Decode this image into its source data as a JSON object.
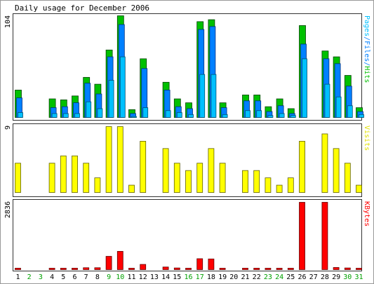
{
  "chart_data": {
    "type": "bar",
    "title": "Daily usage for December 2006",
    "days": [
      "1",
      "2",
      "3",
      "4",
      "5",
      "6",
      "7",
      "8",
      "9",
      "10",
      "11",
      "12",
      "13",
      "14",
      "15",
      "16",
      "17",
      "18",
      "19",
      "20",
      "21",
      "22",
      "23",
      "24",
      "25",
      "26",
      "27",
      "28",
      "29",
      "30",
      "31"
    ],
    "weekend_days": [
      2,
      3,
      9,
      10,
      16,
      17,
      23,
      24,
      30,
      31
    ],
    "panels": [
      {
        "id": "hits-panel",
        "scale_label": "104",
        "max": 104,
        "legend": [
          {
            "text": "Pages",
            "color": "#00C0FF"
          },
          {
            "text": "/",
            "color": "#0080FF"
          },
          {
            "text": "Files",
            "color": "#0080FF"
          },
          {
            "text": "/",
            "color": "#0080FF"
          },
          {
            "text": "Hits",
            "color": "#00C000"
          }
        ],
        "series": [
          {
            "name": "Hits",
            "color": "#00C000",
            "values": [
              28,
              0,
              0,
              19,
              18,
              22,
              41,
              34,
              69,
              104,
              8,
              60,
              0,
              36,
              19,
              15,
              98,
              100,
              15,
              0,
              23,
              23,
              11,
              19,
              9,
              94,
              0,
              68,
              62,
              43,
              10
            ]
          },
          {
            "name": "Files",
            "color": "#0080FF",
            "values": [
              20,
              0,
              0,
              10,
              11,
              15,
              35,
              24,
              62,
              95,
              4,
              50,
              0,
              28,
              11,
              9,
              90,
              93,
              10,
              0,
              17,
              17,
              6,
              12,
              4,
              75,
              0,
              60,
              55,
              32,
              6
            ]
          },
          {
            "name": "Pages",
            "color": "#00C0FF",
            "values": [
              5,
              0,
              0,
              4,
              4,
              4,
              16,
              9,
              38,
              62,
              1,
              10,
              0,
              7,
              5,
              3,
              44,
              44,
              3,
              0,
              7,
              7,
              2,
              4,
              2,
              60,
              0,
              34,
              21,
              12,
              3
            ]
          }
        ]
      },
      {
        "id": "visits-panel",
        "scale_label": "9",
        "max": 9,
        "legend": [
          {
            "text": "Visits",
            "color": "#E0E000"
          }
        ],
        "series": [
          {
            "name": "Visits",
            "color": "#FFFF00",
            "values": [
              4,
              0,
              0,
              4,
              5,
              5,
              4,
              2,
              9,
              9,
              1,
              7,
              0,
              6,
              4,
              3,
              4,
              6,
              4,
              0,
              3,
              3,
              2,
              1,
              2,
              7,
              0,
              8,
              6,
              4,
              1
            ]
          }
        ]
      },
      {
        "id": "kbytes-panel",
        "scale_label": "2836",
        "max": 2836,
        "legend": [
          {
            "text": "KBytes",
            "color": "#FF0000"
          }
        ],
        "series": [
          {
            "name": "KBytes",
            "color": "#FF0000",
            "values": [
              60,
              0,
              0,
              30,
              40,
              60,
              80,
              80,
              560,
              770,
              40,
              220,
              0,
              110,
              70,
              40,
              460,
              450,
              40,
              0,
              60,
              60,
              40,
              40,
              40,
              2836,
              0,
              2836,
              90,
              70,
              40
            ]
          }
        ]
      }
    ]
  }
}
